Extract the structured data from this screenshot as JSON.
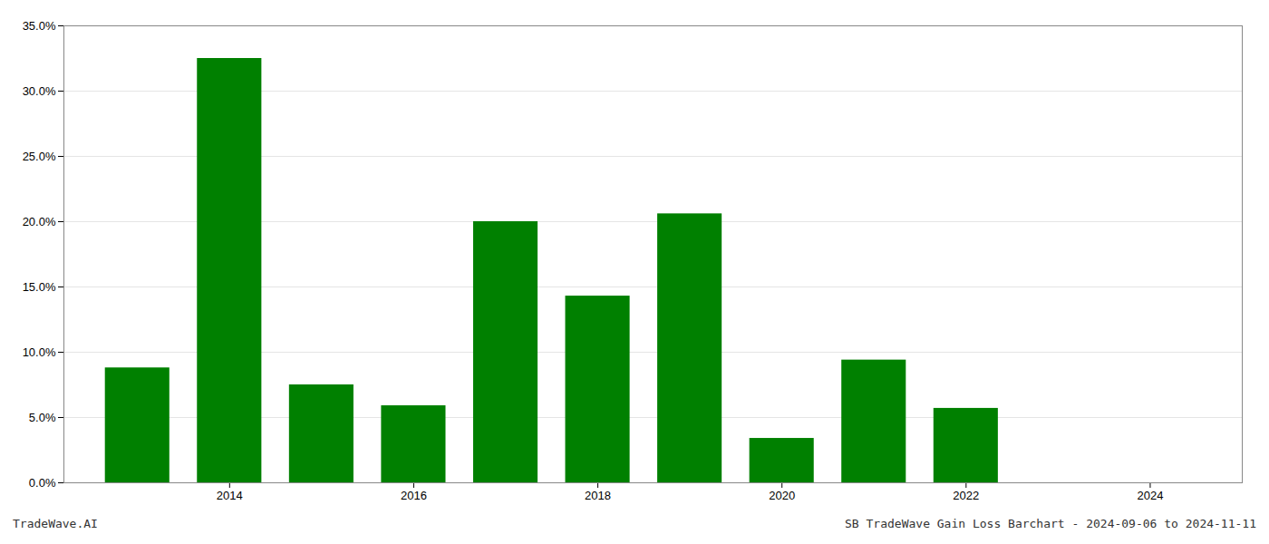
{
  "chart_data": {
    "type": "bar",
    "x": [
      2013,
      2014,
      2015,
      2016,
      2017,
      2018,
      2019,
      2020,
      2021,
      2022,
      2023
    ],
    "values": [
      0.088,
      0.325,
      0.075,
      0.059,
      0.2,
      0.143,
      0.206,
      0.034,
      0.094,
      0.057,
      0.0
    ],
    "color": "#008000",
    "xlim": [
      2012.2,
      2025.0
    ],
    "xticks": [
      2014,
      2016,
      2018,
      2020,
      2022,
      2024
    ],
    "ylim": [
      0,
      0.35
    ],
    "yticks": [
      {
        "value": 0.0,
        "label": "0.0%"
      },
      {
        "value": 0.05,
        "label": "5.0%"
      },
      {
        "value": 0.1,
        "label": "10.0%"
      },
      {
        "value": 0.15,
        "label": "15.0%"
      },
      {
        "value": 0.2,
        "label": "20.0%"
      },
      {
        "value": 0.25,
        "label": "25.0%"
      },
      {
        "value": 0.3,
        "label": "30.0%"
      },
      {
        "value": 0.35,
        "label": "35.0%"
      }
    ],
    "grid": true,
    "annotations": [
      "TradeWave.AI",
      "SB TradeWave Gain Loss Barchart - 2024-09-06 to 2024-11-11"
    ]
  }
}
